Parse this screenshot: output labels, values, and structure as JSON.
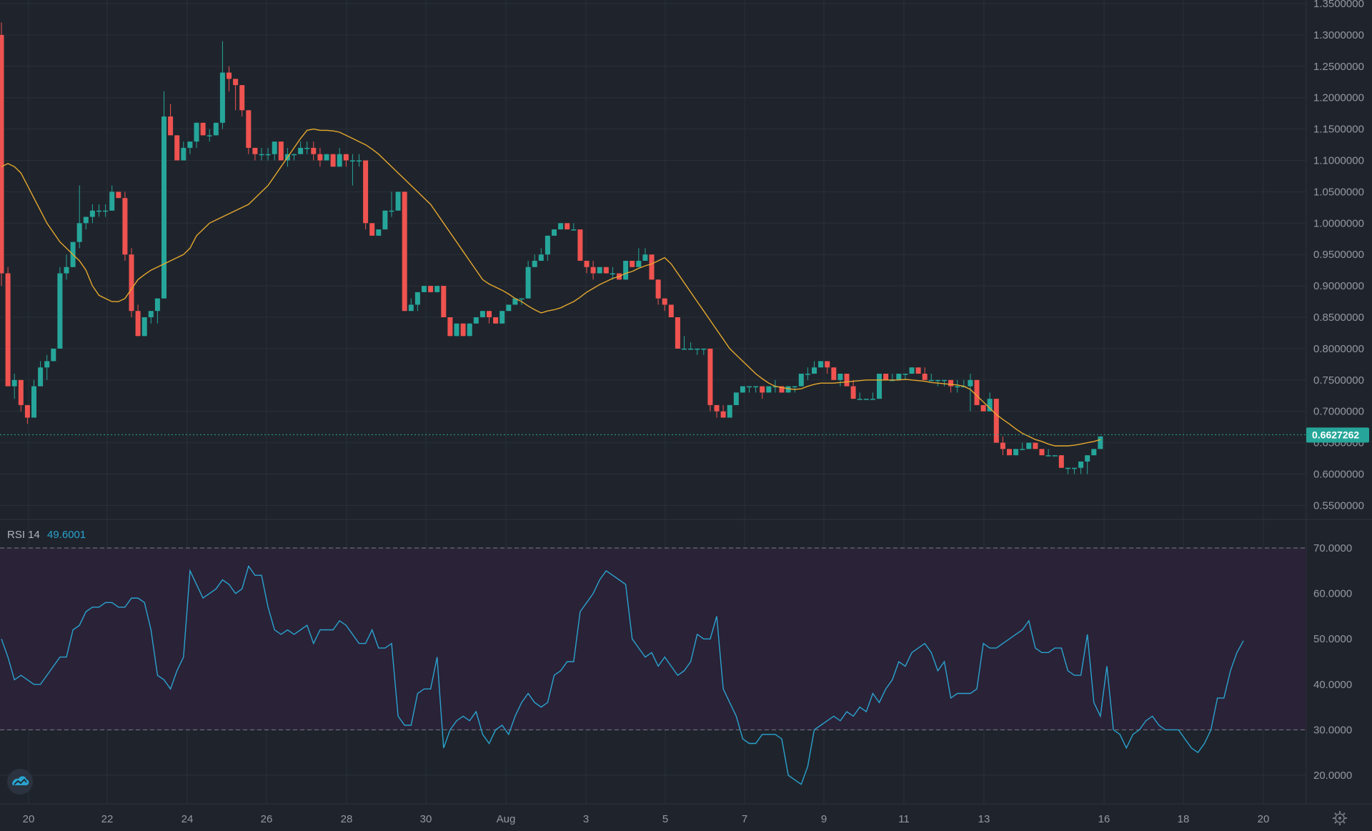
{
  "colors": {
    "background": "#1f242c",
    "grid": "#2a2f38",
    "up": "#26a69a",
    "down": "#ef5350",
    "ma": "#e6a82e",
    "rsi_line": "#2aa3cf",
    "rsi_band": "#2a2237",
    "current_price": "#26a69a"
  },
  "price_axis": {
    "ticks": [
      "1.3500000",
      "1.3000000",
      "1.2500000",
      "1.2000000",
      "1.1500000",
      "1.1000000",
      "1.0500000",
      "1.0000000",
      "0.9500000",
      "0.9000000",
      "0.8500000",
      "0.8000000",
      "0.7500000",
      "0.7000000",
      "0.6500000",
      "0.6000000",
      "0.5500000"
    ]
  },
  "current_price": {
    "label": "0.6627262",
    "value": 0.6627262
  },
  "rsi": {
    "title": "RSI 14",
    "value_label": "49.6001",
    "ticks": [
      "70.0000",
      "60.0000",
      "50.0000",
      "40.0000",
      "30.0000",
      "20.0000"
    ],
    "upper": 70,
    "lower": 30
  },
  "time_axis": {
    "labels": [
      "20",
      "22",
      "24",
      "26",
      "28",
      "30",
      "Aug",
      "3",
      "5",
      "7",
      "9",
      "11",
      "13",
      "16",
      "18",
      "20"
    ]
  },
  "icons": {
    "logo": "tradingview-cloud-icon",
    "settings": "gear-icon"
  },
  "chart_data": {
    "type": "candlestick",
    "price_ylim": [
      0.53,
      1.35
    ],
    "rsi_ylim": [
      15,
      72
    ],
    "grid": true,
    "candles": [
      [
        1.3,
        1.32,
        0.9,
        0.92
      ],
      [
        0.92,
        0.93,
        0.74,
        0.74
      ],
      [
        0.74,
        0.76,
        0.72,
        0.75
      ],
      [
        0.75,
        0.75,
        0.7,
        0.71
      ],
      [
        0.71,
        0.71,
        0.68,
        0.69
      ],
      [
        0.69,
        0.75,
        0.69,
        0.74
      ],
      [
        0.74,
        0.78,
        0.74,
        0.77
      ],
      [
        0.77,
        0.79,
        0.75,
        0.78
      ],
      [
        0.78,
        0.8,
        0.78,
        0.8
      ],
      [
        0.8,
        0.93,
        0.8,
        0.92
      ],
      [
        0.92,
        0.95,
        0.91,
        0.93
      ],
      [
        0.93,
        0.97,
        0.93,
        0.97
      ],
      [
        0.97,
        1.06,
        0.96,
        1.0
      ],
      [
        1.0,
        1.01,
        0.99,
        1.01
      ],
      [
        1.01,
        1.03,
        1.0,
        1.02
      ],
      [
        1.02,
        1.03,
        1.01,
        1.02
      ],
      [
        1.02,
        1.03,
        1.01,
        1.02
      ],
      [
        1.02,
        1.06,
        1.02,
        1.05
      ],
      [
        1.05,
        1.05,
        1.04,
        1.04
      ],
      [
        1.04,
        1.05,
        0.94,
        0.95
      ],
      [
        0.95,
        0.96,
        0.85,
        0.86
      ],
      [
        0.86,
        0.87,
        0.82,
        0.82
      ],
      [
        0.82,
        0.85,
        0.82,
        0.85
      ],
      [
        0.85,
        0.86,
        0.84,
        0.86
      ],
      [
        0.86,
        0.88,
        0.84,
        0.88
      ],
      [
        0.88,
        1.21,
        0.88,
        1.17
      ],
      [
        1.17,
        1.19,
        1.14,
        1.14
      ],
      [
        1.14,
        1.14,
        1.1,
        1.1
      ],
      [
        1.1,
        1.13,
        1.1,
        1.12
      ],
      [
        1.12,
        1.13,
        1.11,
        1.13
      ],
      [
        1.13,
        1.16,
        1.12,
        1.16
      ],
      [
        1.16,
        1.16,
        1.14,
        1.14
      ],
      [
        1.14,
        1.15,
        1.13,
        1.14
      ],
      [
        1.14,
        1.16,
        1.14,
        1.16
      ],
      [
        1.16,
        1.29,
        1.15,
        1.24
      ],
      [
        1.24,
        1.25,
        1.21,
        1.23
      ],
      [
        1.23,
        1.23,
        1.18,
        1.22
      ],
      [
        1.22,
        1.22,
        1.17,
        1.18
      ],
      [
        1.18,
        1.18,
        1.11,
        1.12
      ],
      [
        1.12,
        1.12,
        1.1,
        1.11
      ],
      [
        1.11,
        1.12,
        1.1,
        1.11
      ],
      [
        1.11,
        1.12,
        1.1,
        1.11
      ],
      [
        1.11,
        1.13,
        1.1,
        1.13
      ],
      [
        1.13,
        1.13,
        1.1,
        1.1
      ],
      [
        1.1,
        1.12,
        1.09,
        1.11
      ],
      [
        1.11,
        1.11,
        1.1,
        1.11
      ],
      [
        1.11,
        1.13,
        1.11,
        1.12
      ],
      [
        1.12,
        1.13,
        1.11,
        1.12
      ],
      [
        1.12,
        1.13,
        1.1,
        1.11
      ],
      [
        1.11,
        1.12,
        1.09,
        1.1
      ],
      [
        1.1,
        1.11,
        1.1,
        1.11
      ],
      [
        1.11,
        1.11,
        1.09,
        1.09
      ],
      [
        1.09,
        1.12,
        1.09,
        1.11
      ],
      [
        1.11,
        1.11,
        1.09,
        1.1
      ],
      [
        1.1,
        1.11,
        1.06,
        1.1
      ],
      [
        1.1,
        1.11,
        1.09,
        1.1
      ],
      [
        1.1,
        1.1,
        0.99,
        1.0
      ],
      [
        1.0,
        1.0,
        0.98,
        0.98
      ],
      [
        0.98,
        0.99,
        0.98,
        0.99
      ],
      [
        0.99,
        1.02,
        0.99,
        1.02
      ],
      [
        1.02,
        1.05,
        1.01,
        1.02
      ],
      [
        1.02,
        1.05,
        1.02,
        1.05
      ],
      [
        1.05,
        1.05,
        0.86,
        0.86
      ],
      [
        0.86,
        0.88,
        0.86,
        0.87
      ],
      [
        0.87,
        0.89,
        0.86,
        0.89
      ],
      [
        0.89,
        0.9,
        0.89,
        0.9
      ],
      [
        0.9,
        0.9,
        0.89,
        0.89
      ],
      [
        0.89,
        0.9,
        0.89,
        0.9
      ],
      [
        0.9,
        0.9,
        0.85,
        0.85
      ],
      [
        0.85,
        0.85,
        0.82,
        0.82
      ],
      [
        0.82,
        0.84,
        0.82,
        0.84
      ],
      [
        0.84,
        0.84,
        0.82,
        0.82
      ],
      [
        0.82,
        0.84,
        0.82,
        0.84
      ],
      [
        0.84,
        0.85,
        0.84,
        0.85
      ],
      [
        0.85,
        0.86,
        0.85,
        0.86
      ],
      [
        0.86,
        0.86,
        0.84,
        0.85
      ],
      [
        0.85,
        0.85,
        0.84,
        0.84
      ],
      [
        0.84,
        0.86,
        0.84,
        0.86
      ],
      [
        0.86,
        0.87,
        0.86,
        0.87
      ],
      [
        0.87,
        0.88,
        0.87,
        0.88
      ],
      [
        0.88,
        0.88,
        0.87,
        0.88
      ],
      [
        0.88,
        0.94,
        0.88,
        0.93
      ],
      [
        0.93,
        0.95,
        0.93,
        0.94
      ],
      [
        0.94,
        0.96,
        0.94,
        0.95
      ],
      [
        0.95,
        0.98,
        0.94,
        0.98
      ],
      [
        0.98,
        0.99,
        0.98,
        0.99
      ],
      [
        0.99,
        1.0,
        0.99,
        1.0
      ],
      [
        1.0,
        1.0,
        0.99,
        0.99
      ],
      [
        0.99,
        1.0,
        0.99,
        0.99
      ],
      [
        0.99,
        0.99,
        0.94,
        0.94
      ],
      [
        0.94,
        0.94,
        0.92,
        0.93
      ],
      [
        0.93,
        0.94,
        0.91,
        0.92
      ],
      [
        0.92,
        0.93,
        0.92,
        0.93
      ],
      [
        0.93,
        0.93,
        0.92,
        0.92
      ],
      [
        0.92,
        0.93,
        0.91,
        0.92
      ],
      [
        0.92,
        0.92,
        0.91,
        0.91
      ],
      [
        0.91,
        0.94,
        0.91,
        0.94
      ],
      [
        0.94,
        0.94,
        0.93,
        0.93
      ],
      [
        0.93,
        0.96,
        0.93,
        0.94
      ],
      [
        0.94,
        0.96,
        0.94,
        0.95
      ],
      [
        0.95,
        0.95,
        0.91,
        0.91
      ],
      [
        0.91,
        0.91,
        0.87,
        0.88
      ],
      [
        0.88,
        0.88,
        0.86,
        0.87
      ],
      [
        0.87,
        0.87,
        0.85,
        0.85
      ],
      [
        0.85,
        0.85,
        0.8,
        0.8
      ],
      [
        0.8,
        0.82,
        0.8,
        0.8
      ],
      [
        0.8,
        0.81,
        0.8,
        0.8
      ],
      [
        0.8,
        0.8,
        0.79,
        0.8
      ],
      [
        0.8,
        0.8,
        0.79,
        0.8
      ],
      [
        0.8,
        0.8,
        0.7,
        0.71
      ],
      [
        0.71,
        0.71,
        0.69,
        0.7
      ],
      [
        0.7,
        0.71,
        0.69,
        0.69
      ],
      [
        0.69,
        0.71,
        0.69,
        0.71
      ],
      [
        0.71,
        0.73,
        0.71,
        0.73
      ],
      [
        0.73,
        0.74,
        0.73,
        0.74
      ],
      [
        0.74,
        0.74,
        0.73,
        0.74
      ],
      [
        0.74,
        0.74,
        0.73,
        0.74
      ],
      [
        0.74,
        0.74,
        0.72,
        0.73
      ],
      [
        0.73,
        0.74,
        0.73,
        0.74
      ],
      [
        0.74,
        0.75,
        0.73,
        0.74
      ],
      [
        0.74,
        0.74,
        0.73,
        0.73
      ],
      [
        0.73,
        0.74,
        0.73,
        0.74
      ],
      [
        0.74,
        0.74,
        0.73,
        0.74
      ],
      [
        0.74,
        0.76,
        0.74,
        0.76
      ],
      [
        0.76,
        0.77,
        0.75,
        0.76
      ],
      [
        0.76,
        0.78,
        0.76,
        0.77
      ],
      [
        0.77,
        0.78,
        0.77,
        0.78
      ],
      [
        0.78,
        0.78,
        0.76,
        0.77
      ],
      [
        0.77,
        0.77,
        0.75,
        0.75
      ],
      [
        0.75,
        0.76,
        0.74,
        0.76
      ],
      [
        0.76,
        0.76,
        0.74,
        0.74
      ],
      [
        0.74,
        0.75,
        0.72,
        0.72
      ],
      [
        0.72,
        0.73,
        0.72,
        0.72
      ],
      [
        0.72,
        0.72,
        0.72,
        0.72
      ],
      [
        0.72,
        0.73,
        0.72,
        0.72
      ],
      [
        0.72,
        0.76,
        0.72,
        0.76
      ],
      [
        0.76,
        0.76,
        0.75,
        0.75
      ],
      [
        0.75,
        0.76,
        0.75,
        0.75
      ],
      [
        0.75,
        0.76,
        0.75,
        0.76
      ],
      [
        0.76,
        0.76,
        0.75,
        0.76
      ],
      [
        0.76,
        0.77,
        0.76,
        0.77
      ],
      [
        0.77,
        0.77,
        0.76,
        0.76
      ],
      [
        0.76,
        0.77,
        0.75,
        0.75
      ],
      [
        0.75,
        0.76,
        0.75,
        0.75
      ],
      [
        0.75,
        0.75,
        0.74,
        0.75
      ],
      [
        0.75,
        0.75,
        0.74,
        0.75
      ],
      [
        0.75,
        0.75,
        0.73,
        0.74
      ],
      [
        0.74,
        0.75,
        0.73,
        0.74
      ],
      [
        0.74,
        0.75,
        0.74,
        0.74
      ],
      [
        0.74,
        0.76,
        0.7,
        0.75
      ],
      [
        0.75,
        0.75,
        0.71,
        0.71
      ],
      [
        0.71,
        0.71,
        0.7,
        0.7
      ],
      [
        0.7,
        0.73,
        0.7,
        0.72
      ],
      [
        0.72,
        0.72,
        0.65,
        0.65
      ],
      [
        0.65,
        0.66,
        0.63,
        0.64
      ],
      [
        0.64,
        0.64,
        0.63,
        0.63
      ],
      [
        0.63,
        0.64,
        0.63,
        0.64
      ],
      [
        0.64,
        0.65,
        0.64,
        0.64
      ],
      [
        0.64,
        0.65,
        0.64,
        0.65
      ],
      [
        0.65,
        0.65,
        0.64,
        0.64
      ],
      [
        0.64,
        0.64,
        0.63,
        0.63
      ],
      [
        0.63,
        0.64,
        0.63,
        0.63
      ],
      [
        0.63,
        0.63,
        0.63,
        0.63
      ],
      [
        0.63,
        0.63,
        0.61,
        0.61
      ],
      [
        0.61,
        0.61,
        0.6,
        0.61
      ],
      [
        0.61,
        0.61,
        0.6,
        0.61
      ],
      [
        0.61,
        0.62,
        0.6,
        0.62
      ],
      [
        0.62,
        0.63,
        0.6,
        0.63
      ],
      [
        0.63,
        0.64,
        0.63,
        0.64
      ],
      [
        0.64,
        0.66,
        0.64,
        0.66
      ]
    ],
    "ma_values": [
      1.09,
      1.095,
      1.09,
      1.08,
      1.06,
      1.04,
      1.02,
      1.0,
      0.985,
      0.97,
      0.96,
      0.95,
      0.94,
      0.925,
      0.9,
      0.885,
      0.88,
      0.875,
      0.875,
      0.88,
      0.895,
      0.91,
      0.918,
      0.925,
      0.93,
      0.935,
      0.94,
      0.945,
      0.95,
      0.96,
      0.98,
      0.99,
      1.0,
      1.005,
      1.01,
      1.015,
      1.02,
      1.025,
      1.03,
      1.04,
      1.05,
      1.06,
      1.075,
      1.09,
      1.105,
      1.12,
      1.135,
      1.148,
      1.15,
      1.148,
      1.148,
      1.147,
      1.145,
      1.14,
      1.135,
      1.13,
      1.125,
      1.118,
      1.11,
      1.1,
      1.09,
      1.08,
      1.07,
      1.06,
      1.05,
      1.04,
      1.03,
      1.015,
      1.0,
      0.985,
      0.97,
      0.955,
      0.94,
      0.925,
      0.91,
      0.903,
      0.898,
      0.893,
      0.887,
      0.88,
      0.875,
      0.868,
      0.862,
      0.857,
      0.86,
      0.862,
      0.865,
      0.87,
      0.875,
      0.882,
      0.89,
      0.896,
      0.902,
      0.907,
      0.912,
      0.915,
      0.92,
      0.923,
      0.928,
      0.932,
      0.935,
      0.94,
      0.945,
      0.935,
      0.92,
      0.905,
      0.89,
      0.875,
      0.86,
      0.845,
      0.83,
      0.815,
      0.8,
      0.79,
      0.78,
      0.77,
      0.76,
      0.752,
      0.745,
      0.74,
      0.738,
      0.736,
      0.735,
      0.736,
      0.74,
      0.743,
      0.745,
      0.745,
      0.745,
      0.746,
      0.747,
      0.748,
      0.749,
      0.75,
      0.75,
      0.75,
      0.75,
      0.75,
      0.75,
      0.751,
      0.75,
      0.749,
      0.748,
      0.746,
      0.745,
      0.744,
      0.743,
      0.742,
      0.74,
      0.735,
      0.725,
      0.715,
      0.705,
      0.695,
      0.687,
      0.68,
      0.672,
      0.665,
      0.66,
      0.655,
      0.652,
      0.648,
      0.645,
      0.645,
      0.645,
      0.646,
      0.648,
      0.65,
      0.652,
      0.655
    ],
    "rsi_values": [
      50,
      46,
      41,
      42,
      41,
      40,
      40,
      42,
      44,
      46,
      46,
      52,
      53,
      56,
      57,
      57,
      58,
      58,
      57,
      57,
      59,
      59,
      58,
      52,
      42,
      41,
      39,
      43,
      46,
      65,
      62,
      59,
      60,
      61,
      63,
      62,
      60,
      61,
      66,
      64,
      64,
      57,
      52,
      51,
      52,
      51,
      52,
      53,
      49,
      52,
      52,
      52,
      54,
      53,
      51,
      49,
      49,
      52,
      48,
      48,
      49,
      33,
      31,
      31,
      38,
      39,
      39,
      46,
      26,
      30,
      32,
      33,
      32,
      34,
      29,
      27,
      30,
      31,
      29,
      33,
      36,
      38,
      36,
      35,
      36,
      42,
      43,
      45,
      45,
      56,
      58,
      60,
      63,
      65,
      64,
      63,
      62,
      50,
      48,
      46,
      47,
      44,
      46,
      44,
      42,
      43,
      45,
      51,
      50,
      50,
      55,
      39,
      36,
      33,
      28,
      27,
      27,
      29,
      29,
      29,
      28,
      20,
      19,
      18,
      22,
      30,
      31,
      32,
      33,
      32,
      34,
      33,
      35,
      34,
      38,
      36,
      39,
      41,
      45,
      44,
      47,
      48,
      49,
      47,
      43,
      45,
      37,
      38,
      38,
      38,
      39,
      49,
      48,
      48,
      49,
      50,
      51,
      52,
      54,
      48,
      47,
      47,
      48,
      48,
      43,
      42,
      42,
      51,
      36,
      33,
      44,
      30,
      29,
      26,
      29,
      30,
      32,
      33,
      31,
      30,
      30,
      30,
      28,
      26,
      25,
      27,
      30,
      37,
      37,
      43,
      47,
      49.6
    ]
  }
}
